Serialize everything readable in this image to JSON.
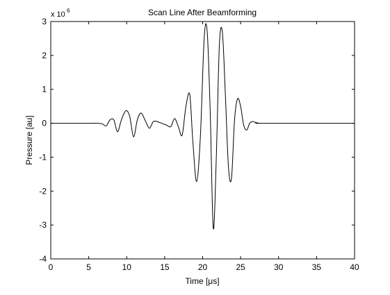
{
  "chart_data": {
    "type": "line",
    "title": "Scan Line After Beamforming",
    "xlabel": "Time [μs]",
    "ylabel": "Pressure [au]",
    "xlim": [
      0,
      40
    ],
    "ylim": [
      -4,
      3
    ],
    "y_multiplier": {
      "base": "x 10",
      "exponent": "6"
    },
    "x_ticks": [
      {
        "value": 0,
        "label": "0"
      },
      {
        "value": 5,
        "label": "5"
      },
      {
        "value": 10,
        "label": "10"
      },
      {
        "value": 15,
        "label": "15"
      },
      {
        "value": 20,
        "label": "20"
      },
      {
        "value": 25,
        "label": "25"
      },
      {
        "value": 30,
        "label": "30"
      },
      {
        "value": 35,
        "label": "35"
      },
      {
        "value": 40,
        "label": "40"
      }
    ],
    "y_ticks": [
      {
        "value": 3,
        "label": "3"
      },
      {
        "value": 2,
        "label": "2"
      },
      {
        "value": 1,
        "label": "1"
      },
      {
        "value": 0,
        "label": "0"
      },
      {
        "value": -1,
        "label": "-1"
      },
      {
        "value": -2,
        "label": "-2"
      },
      {
        "value": -3,
        "label": "-3"
      },
      {
        "value": -4,
        "label": "-4"
      }
    ],
    "grid": false,
    "legend": "none",
    "line_color": "#000000",
    "series": [
      {
        "x": [
          0,
          5,
          6.2,
          6.8,
          7.3,
          7.8,
          8.3,
          8.8,
          9.3,
          9.9,
          10.4,
          10.9,
          11.4,
          11.9,
          12.5,
          13.0,
          13.5,
          14.0,
          14.6,
          15.2,
          15.8,
          16.3,
          16.8,
          17.3,
          17.8,
          18.3,
          18.7,
          19.2,
          19.7,
          20.2,
          20.6,
          21.0,
          21.4,
          21.8,
          22.2,
          22.6,
          23.0,
          23.4,
          23.8,
          24.2,
          24.6,
          25.0,
          25.4,
          25.8,
          26.2,
          26.6,
          27.0,
          27.5,
          28.0,
          40
        ],
        "y": [
          0,
          0,
          0,
          -0.02,
          -0.08,
          0.1,
          0.1,
          -0.25,
          0.1,
          0.37,
          0.2,
          -0.4,
          0.1,
          0.3,
          0.05,
          -0.15,
          0.05,
          0.05,
          0.0,
          -0.05,
          -0.1,
          0.14,
          -0.1,
          -0.35,
          0.5,
          0.85,
          -0.5,
          -1.72,
          -0.4,
          2.5,
          2.7,
          0.3,
          -3.1,
          -1.0,
          2.3,
          2.68,
          0.8,
          -1.3,
          -1.62,
          0.1,
          0.72,
          0.5,
          -0.05,
          -0.2,
          0.0,
          0.05,
          0.02,
          0.0,
          0.0,
          0
        ]
      }
    ]
  }
}
